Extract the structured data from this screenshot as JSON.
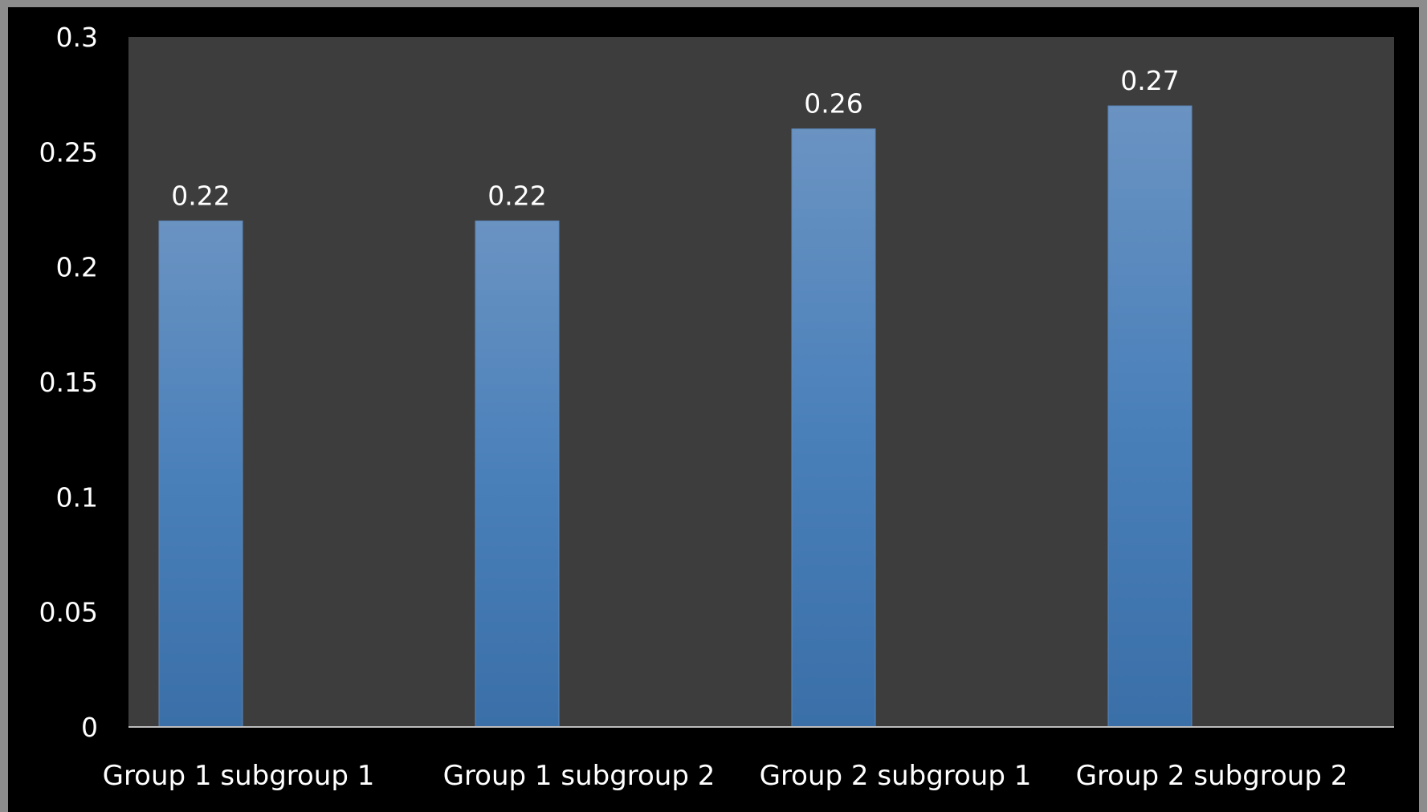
{
  "chart_data": {
    "type": "bar",
    "title": "",
    "xlabel": "",
    "ylabel": "",
    "categories": [
      "Group 1 subgroup 1",
      "Group 1 subgroup 2",
      "Group 2 subgroup 1",
      "Group 2 subgroup 2"
    ],
    "values": [
      0.22,
      0.22,
      0.26,
      0.27
    ],
    "data_labels": [
      "0.22",
      "0.22",
      "0.26",
      "0.27"
    ],
    "ylim": [
      0,
      0.3
    ],
    "yticks": [
      "0",
      "0.05",
      "0.1",
      "0.15",
      "0.2",
      "0.25",
      "0.3"
    ],
    "grid": false,
    "legend": "none",
    "colors": {
      "bar_top": "#6a93c2",
      "bar_bottom": "#3a6fa8",
      "plot_bg": "#3d3d3d",
      "outer_bg": "#000000",
      "frame": "#8c8c8c",
      "text": "#ffffff"
    }
  }
}
